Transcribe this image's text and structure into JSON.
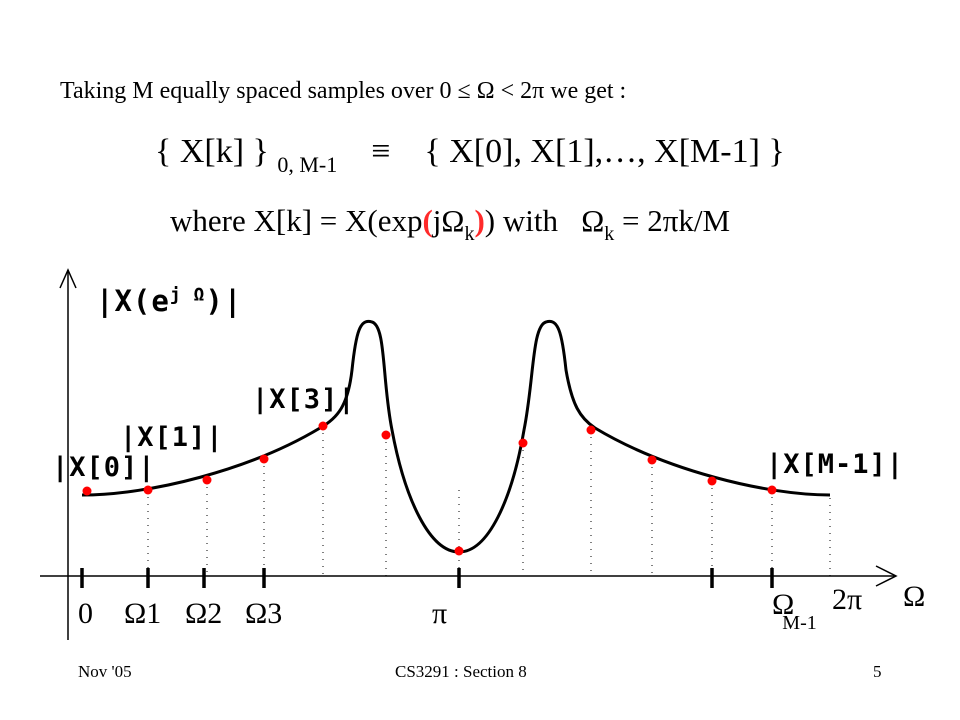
{
  "slide": {
    "intro": {
      "prefix": "Taking M equally spaced samples over 0",
      "leq": "≤",
      "omega": "Ω",
      "mid": "< 2",
      "pi": "π",
      "suffix": "we get :"
    },
    "set_eq": {
      "lhs": "{ X[k] }",
      "lhs_sub": "0, M-1",
      "equiv": "≡",
      "rhs": "{ X[0], X[1],…, X[M-1] }"
    },
    "where": {
      "part1": "where X[k] = X(exp",
      "open": "(",
      "j": "j",
      "omega": "Ω",
      "k": "k",
      "close": ")",
      "part2": ") with",
      "omega2": "Ω",
      "k2": "k",
      "part3": " = 2",
      "pi": "π",
      "part4": "k/M"
    }
  },
  "plot": {
    "y_label_left": "|X(e",
    "y_label_sup": "j Ω",
    "y_label_right": ")|",
    "label_x0": "|X[0]|",
    "label_x1": "|X[1]|",
    "label_x3": "|X[3]|",
    "label_xm1": "|X[M-1]|",
    "tick_0": "0",
    "tick_1": "Ω1",
    "tick_2": "Ω2",
    "tick_3": "Ω3",
    "tick_pi": "π",
    "tick_m1": "Ω",
    "tick_m1_sub": "M-1",
    "tick_2pi": "2π",
    "axis_label": "Ω",
    "curve_color": "#000000",
    "sample_color": "#ff0000"
  },
  "footer": {
    "left": "Nov '05",
    "center": "CS3291 : Section 8",
    "right": "5"
  }
}
